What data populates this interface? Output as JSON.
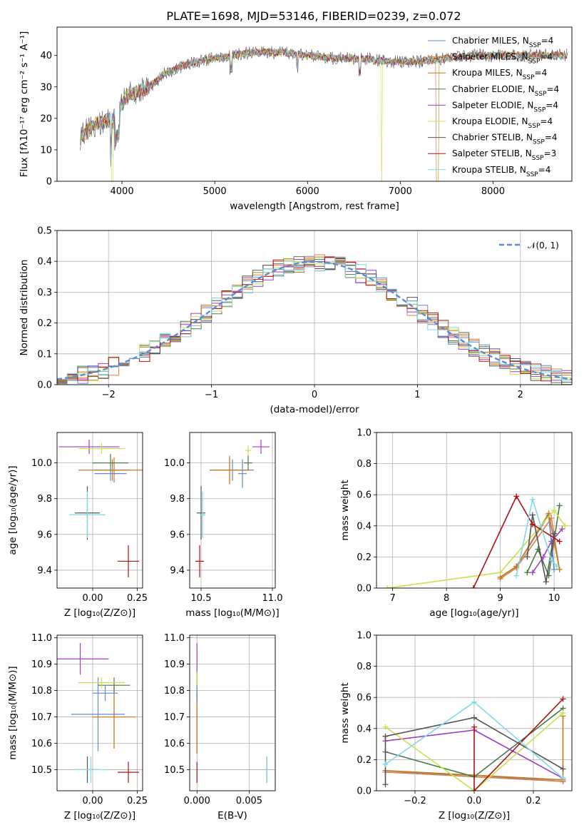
{
  "title": "PLATE=1698, MJD=53146, FIBERID=0239, z=0.072",
  "colors": [
    "#6688cc",
    "#d9844a",
    "#c97a1e",
    "#4a7a4a",
    "#a040c0",
    "#c8e04a",
    "#555555",
    "#b01010",
    "#80d8e8"
  ],
  "chart_data": [
    {
      "id": "spectrum",
      "type": "line",
      "xlabel": "wavelength [Angstrom, rest frame]",
      "ylabel": "Flux [fλ10⁻¹⁷ erg cm⁻² s⁻¹ A⁻¹]",
      "xlim": [
        3300,
        8850
      ],
      "ylim": [
        0,
        49
      ],
      "xticks": [
        4000,
        5000,
        6000,
        7000,
        8000
      ],
      "yticks": [
        0,
        10,
        20,
        30,
        40
      ],
      "continuum": [
        [
          3550,
          14
        ],
        [
          3700,
          18
        ],
        [
          3900,
          20
        ],
        [
          4050,
          27
        ],
        [
          4200,
          29
        ],
        [
          4300,
          30
        ],
        [
          4450,
          34
        ],
        [
          4600,
          36
        ],
        [
          4800,
          38
        ],
        [
          5000,
          39
        ],
        [
          5200,
          40
        ],
        [
          5400,
          41
        ],
        [
          5700,
          41
        ],
        [
          6000,
          40
        ],
        [
          6300,
          39
        ],
        [
          6600,
          39
        ],
        [
          6900,
          38
        ],
        [
          7200,
          38
        ],
        [
          7500,
          39
        ],
        [
          7800,
          40
        ],
        [
          8100,
          40
        ],
        [
          8400,
          40
        ],
        [
          8800,
          40
        ]
      ],
      "legend_loc": "upper right",
      "series": [
        {
          "name": "Chabrier MILES, N",
          "sub": "SSP",
          "n": "=4"
        },
        {
          "name": "Salpeter MILES, N",
          "sub": "SSP",
          "n": "=4"
        },
        {
          "name": "Kroupa MILES, N",
          "sub": "SSP",
          "n": "=4"
        },
        {
          "name": "Chabrier ELODIE, N",
          "sub": "SSP",
          "n": "=4"
        },
        {
          "name": "Salpeter ELODIE, N",
          "sub": "SSP",
          "n": "=4"
        },
        {
          "name": "Kroupa ELODIE, N",
          "sub": "SSP",
          "n": "=4"
        },
        {
          "name": "Chabrier STELIB, N",
          "sub": "SSP",
          "n": "=4"
        },
        {
          "name": "Salpeter STELIB, N",
          "sub": "SSP",
          "n": "=3"
        },
        {
          "name": "Kroupa STELIB, N",
          "sub": "SSP",
          "n": "=4"
        }
      ]
    },
    {
      "id": "residuals",
      "type": "histogram",
      "xlabel": "(data-model)/error",
      "ylabel": "Normed distribution",
      "xlim": [
        -2.5,
        2.5
      ],
      "ylim": [
        0,
        0.5
      ],
      "xticks": [
        -2,
        -1,
        0,
        1,
        2
      ],
      "yticks": [
        0.0,
        0.1,
        0.2,
        0.3,
        0.4,
        0.5
      ],
      "bin_width": 0.1,
      "grid": true,
      "reference": {
        "name": "𝒩(0, 1)",
        "mean": 0,
        "sigma": 1
      }
    },
    {
      "id": "z-age",
      "type": "scatter",
      "xlabel": "Z [log₁₀(Z/Z⊙)]",
      "ylabel": "age  [log₁₀(age/yr)]",
      "xlim": [
        -0.2,
        0.28
      ],
      "ylim": [
        9.3,
        10.17
      ],
      "xticks": [
        0.0,
        0.25
      ],
      "yticks": [
        9.4,
        9.6,
        9.8,
        10.0
      ],
      "points": [
        {
          "x": 0.12,
          "y": 9.96,
          "xerr": 0.2,
          "yerr": 0.07
        },
        {
          "x": 0.12,
          "y": 9.96,
          "xerr": 0.2,
          "yerr": 0.07
        },
        {
          "x": 0.11,
          "y": 9.96,
          "xerr": 0.1,
          "yerr": 0.06
        },
        {
          "x": 0.1,
          "y": 10.0,
          "xerr": 0.1,
          "yerr": 0.05
        },
        {
          "x": -0.02,
          "y": 10.09,
          "xerr": 0.17,
          "yerr": 0.04
        },
        {
          "x": 0.05,
          "y": 10.08,
          "xerr": 0.13,
          "yerr": 0.03
        },
        {
          "x": -0.03,
          "y": 9.72,
          "xerr": 0.07,
          "yerr": 0.15
        },
        {
          "x": 0.2,
          "y": 9.45,
          "xerr": 0.06,
          "yerr": 0.09
        },
        {
          "x": -0.03,
          "y": 9.71,
          "xerr": 0.1,
          "yerr": 0.13
        },
        {
          "x": 0.1,
          "y": 9.94,
          "xerr": 0.09,
          "yerr": 0.04
        }
      ]
    },
    {
      "id": "mass-age",
      "type": "scatter",
      "xlabel": "mass [log₁₀(M/M⊙)]",
      "ylabel": "",
      "xlim": [
        10.42,
        11.02
      ],
      "ylim": [
        9.3,
        10.17
      ],
      "xticks": [
        10.5,
        11.0
      ],
      "yticks": [
        9.4,
        9.6,
        9.8,
        10.0
      ],
      "points": [
        {
          "x": 10.72,
          "y": 9.96,
          "xerr": 0.15,
          "yerr": 0.06
        },
        {
          "x": 10.7,
          "y": 9.96,
          "xerr": 0.14,
          "yerr": 0.07
        },
        {
          "x": 10.7,
          "y": 9.96,
          "xerr": 0.14,
          "yerr": 0.08
        },
        {
          "x": 10.83,
          "y": 10.0,
          "xerr": 0.03,
          "yerr": 0.04
        },
        {
          "x": 10.92,
          "y": 10.09,
          "xerr": 0.06,
          "yerr": 0.04
        },
        {
          "x": 10.83,
          "y": 10.07,
          "xerr": 0.02,
          "yerr": 0.03
        },
        {
          "x": 10.5,
          "y": 9.72,
          "xerr": 0.03,
          "yerr": 0.15
        },
        {
          "x": 10.49,
          "y": 9.45,
          "xerr": 0.03,
          "yerr": 0.09
        },
        {
          "x": 10.51,
          "y": 9.71,
          "xerr": 0.02,
          "yerr": 0.13
        },
        {
          "x": 10.79,
          "y": 9.94,
          "xerr": 0.03,
          "yerr": 0.08
        }
      ]
    },
    {
      "id": "age-massweight",
      "type": "line",
      "xlabel": "age  [log₁₀(age/yr)]",
      "ylabel": "mass weight",
      "xlim": [
        6.7,
        10.33
      ],
      "ylim": [
        0,
        1
      ],
      "xticks": [
        7,
        8,
        9,
        10
      ],
      "yticks": [
        0.0,
        0.2,
        0.4,
        0.6,
        0.8,
        1.0
      ],
      "series": [
        {
          "x": [
            9.0,
            9.3,
            9.9,
            10.0
          ],
          "y": [
            0.07,
            0.14,
            0.47,
            0.12
          ]
        },
        {
          "x": [
            9.0,
            9.3,
            9.95,
            10.1
          ],
          "y": [
            0.06,
            0.13,
            0.45,
            0.12
          ]
        },
        {
          "x": [
            9.0,
            9.3,
            9.9,
            10.1
          ],
          "y": [
            0.07,
            0.14,
            0.48,
            0.12
          ]
        },
        {
          "x": [
            9.5,
            9.7,
            9.9,
            10.1
          ],
          "y": [
            0.1,
            0.25,
            0.08,
            0.53
          ]
        },
        {
          "x": [
            9.6,
            9.8,
            9.95,
            10.15
          ],
          "y": [
            0.1,
            0.2,
            0.3,
            0.38
          ]
        },
        {
          "x": [
            6.9,
            9.0,
            10.0,
            10.2
          ],
          "y": [
            0.0,
            0.1,
            0.5,
            0.4
          ]
        },
        {
          "x": [
            9.5,
            9.6,
            9.85,
            10.0
          ],
          "y": [
            0.2,
            0.47,
            0.04,
            0.35
          ]
        },
        {
          "x": [
            8.5,
            9.3,
            9.6,
            10.1
          ],
          "y": [
            0.0,
            0.59,
            0.41,
            0.3
          ]
        },
        {
          "x": [
            9.3,
            9.6,
            9.95,
            10.05
          ],
          "y": [
            0.08,
            0.57,
            0.18,
            0.14
          ]
        }
      ]
    },
    {
      "id": "z-mass",
      "type": "scatter",
      "xlabel": "Z [log₁₀(Z/Z⊙)]",
      "ylabel": "mass [log₁₀(M/M⊙)]",
      "xlim": [
        -0.2,
        0.28
      ],
      "ylim": [
        10.42,
        11.01
      ],
      "xticks": [
        0.0,
        0.25
      ],
      "yticks": [
        10.5,
        10.6,
        10.7,
        10.8,
        10.9,
        11.0
      ],
      "points": [
        {
          "x": 0.03,
          "y": 10.71,
          "xerr": 0.15,
          "yerr": 0.14
        },
        {
          "x": 0.12,
          "y": 10.7,
          "xerr": 0.12,
          "yerr": 0.12
        },
        {
          "x": 0.12,
          "y": 10.7,
          "xerr": 0.12,
          "yerr": 0.12
        },
        {
          "x": 0.12,
          "y": 10.82,
          "xerr": 0.09,
          "yerr": 0.03
        },
        {
          "x": -0.07,
          "y": 10.92,
          "xerr": 0.16,
          "yerr": 0.06
        },
        {
          "x": 0.05,
          "y": 10.83,
          "xerr": 0.13,
          "yerr": 0.02
        },
        {
          "x": -0.03,
          "y": 10.5,
          "xerr": 0.07,
          "yerr": 0.05
        },
        {
          "x": 0.2,
          "y": 10.49,
          "xerr": 0.06,
          "yerr": 0.04
        },
        {
          "x": -0.01,
          "y": 10.5,
          "xerr": 0.1,
          "yerr": 0.05
        },
        {
          "x": 0.07,
          "y": 10.79,
          "xerr": 0.07,
          "yerr": 0.03
        }
      ]
    },
    {
      "id": "ebv-mass",
      "type": "scatter",
      "xlabel": "E(B-V)",
      "ylabel": "",
      "xlim": [
        -0.0007,
        0.0075
      ],
      "ylim": [
        10.42,
        11.01
      ],
      "xticks": [
        0.0,
        0.005
      ],
      "yticks": [
        10.5,
        10.6,
        10.7,
        10.8,
        10.9,
        11.0
      ],
      "points": [
        {
          "x": 0.0,
          "y": 10.71,
          "xerr": 0,
          "yerr": 0.14
        },
        {
          "x": 0.0,
          "y": 10.7,
          "xerr": 0,
          "yerr": 0.14
        },
        {
          "x": 0.0,
          "y": 10.7,
          "xerr": 0,
          "yerr": 0.14
        },
        {
          "x": 0.0,
          "y": 10.82,
          "xerr": 0,
          "yerr": 0.05
        },
        {
          "x": 0.0,
          "y": 10.92,
          "xerr": 0,
          "yerr": 0.06
        },
        {
          "x": 0.0,
          "y": 10.83,
          "xerr": 0,
          "yerr": 0.04
        },
        {
          "x": 0.0067,
          "y": 10.5,
          "xerr": 0,
          "yerr": 0.05
        },
        {
          "x": 0.0,
          "y": 10.49,
          "xerr": 0,
          "yerr": 0.04
        },
        {
          "x": 0.0067,
          "y": 10.5,
          "xerr": 0,
          "yerr": 0.05
        },
        {
          "x": 0.0,
          "y": 10.79,
          "xerr": 0,
          "yerr": 0.03
        }
      ]
    },
    {
      "id": "z-massweight",
      "type": "line",
      "xlabel": "Z [log₁₀(Z/Z⊙)]",
      "ylabel": "mass weight",
      "xlim": [
        -0.33,
        0.33
      ],
      "ylim": [
        0,
        1
      ],
      "xticks": [
        -0.2,
        0.0,
        0.2
      ],
      "yticks": [
        0.0,
        0.2,
        0.4,
        0.6,
        0.8,
        1.0
      ],
      "series": [
        {
          "x": [
            -0.3,
            0.0,
            0.3
          ],
          "y": [
            0.12,
            0.1,
            0.06
          ]
        },
        {
          "x": [
            -0.3,
            0.0,
            0.3
          ],
          "y": [
            0.12,
            0.09,
            0.06
          ]
        },
        {
          "x": [
            -0.3,
            0.0,
            0.3,
            0.3
          ],
          "y": [
            0.13,
            0.1,
            0.07,
            0.48
          ]
        },
        {
          "x": [
            -0.3,
            0.0,
            0.3
          ],
          "y": [
            0.25,
            0.09,
            0.53
          ]
        },
        {
          "x": [
            -0.3,
            0.0,
            0.3
          ],
          "y": [
            0.32,
            0.39,
            0.08
          ]
        },
        {
          "x": [
            -0.3,
            0.0,
            0.3
          ],
          "y": [
            0.41,
            0.0,
            0.5
          ]
        },
        {
          "x": [
            -0.3,
            -0.3,
            0.0,
            0.3
          ],
          "y": [
            0.04,
            0.35,
            0.47,
            0.14
          ]
        },
        {
          "x": [
            0.0,
            0.0,
            0.3
          ],
          "y": [
            0.41,
            0.0,
            0.59
          ]
        },
        {
          "x": [
            -0.3,
            0.0,
            0.3
          ],
          "y": [
            0.17,
            0.57,
            0.08
          ]
        }
      ]
    }
  ]
}
